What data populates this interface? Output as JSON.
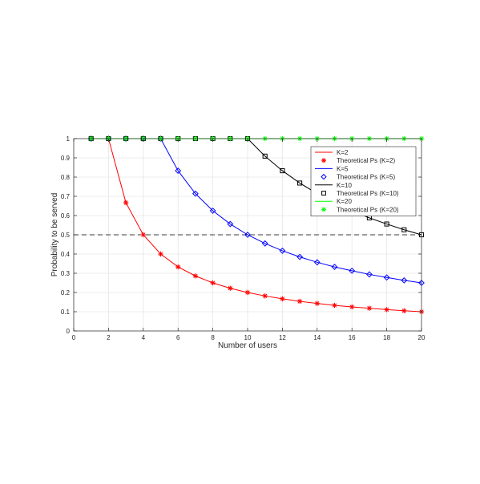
{
  "chart_data": {
    "type": "line",
    "xlabel": "Number of users",
    "ylabel": "Probability to be served",
    "xlim": [
      0,
      20
    ],
    "ylim": [
      0,
      1
    ],
    "grid": true,
    "legend_position": "upper-right",
    "xticks": [
      "0",
      "2",
      "4",
      "6",
      "8",
      "10",
      "12",
      "14",
      "16",
      "18",
      "20"
    ],
    "yticks": [
      "0",
      "0.1",
      "0.2",
      "0.3",
      "0.4",
      "0.5",
      "0.6",
      "0.7",
      "0.8",
      "0.9",
      "1"
    ],
    "reference_line": {
      "y": 0.5,
      "style": "dashed",
      "color": "#000000"
    },
    "x": [
      1,
      2,
      3,
      4,
      5,
      6,
      7,
      8,
      9,
      10,
      11,
      12,
      13,
      14,
      15,
      16,
      17,
      18,
      19,
      20
    ],
    "series": [
      {
        "name": "K=2",
        "kind": "line",
        "color": "#ff0000",
        "values": [
          1,
          1,
          0.667,
          0.5,
          0.4,
          0.333,
          0.286,
          0.25,
          0.222,
          0.2,
          0.182,
          0.167,
          0.154,
          0.143,
          0.133,
          0.125,
          0.118,
          0.111,
          0.105,
          0.1
        ]
      },
      {
        "name": "Theoretical Ps (K=2)",
        "kind": "marker",
        "marker": "asterisk",
        "color": "#ff0000",
        "values": [
          1,
          1,
          0.667,
          0.5,
          0.4,
          0.333,
          0.286,
          0.25,
          0.222,
          0.2,
          0.182,
          0.167,
          0.154,
          0.143,
          0.133,
          0.125,
          0.118,
          0.111,
          0.105,
          0.1
        ]
      },
      {
        "name": "K=5",
        "kind": "line",
        "color": "#0000ff",
        "values": [
          1,
          1,
          1,
          1,
          1,
          0.833,
          0.714,
          0.625,
          0.556,
          0.5,
          0.455,
          0.417,
          0.385,
          0.357,
          0.333,
          0.313,
          0.294,
          0.278,
          0.263,
          0.25
        ]
      },
      {
        "name": "Theoretical Ps (K=5)",
        "kind": "marker",
        "marker": "diamond",
        "color": "#0000ff",
        "values": [
          1,
          1,
          1,
          1,
          1,
          0.833,
          0.714,
          0.625,
          0.556,
          0.5,
          0.455,
          0.417,
          0.385,
          0.357,
          0.333,
          0.313,
          0.294,
          0.278,
          0.263,
          0.25
        ]
      },
      {
        "name": "K=10",
        "kind": "line",
        "color": "#000000",
        "values": [
          1,
          1,
          1,
          1,
          1,
          1,
          1,
          1,
          1,
          1,
          0.909,
          0.833,
          0.769,
          0.714,
          0.667,
          0.625,
          0.588,
          0.556,
          0.526,
          0.5
        ]
      },
      {
        "name": "Theoretical Ps (K=10)",
        "kind": "marker",
        "marker": "square",
        "color": "#000000",
        "values": [
          1,
          1,
          1,
          1,
          1,
          1,
          1,
          1,
          1,
          1,
          0.909,
          0.833,
          0.769,
          0.714,
          0.667,
          0.625,
          0.588,
          0.556,
          0.526,
          0.5
        ]
      },
      {
        "name": "K=20",
        "kind": "line",
        "color": "#00ff00",
        "values": [
          1,
          1,
          1,
          1,
          1,
          1,
          1,
          1,
          1,
          1,
          1,
          1,
          1,
          1,
          1,
          1,
          1,
          1,
          1,
          1
        ]
      },
      {
        "name": "Theoretical Ps (K=20)",
        "kind": "marker",
        "marker": "asterisk",
        "color": "#00ff00",
        "values": [
          1,
          1,
          1,
          1,
          1,
          1,
          1,
          1,
          1,
          1,
          1,
          1,
          1,
          1,
          1,
          1,
          1,
          1,
          1,
          1
        ]
      }
    ]
  }
}
